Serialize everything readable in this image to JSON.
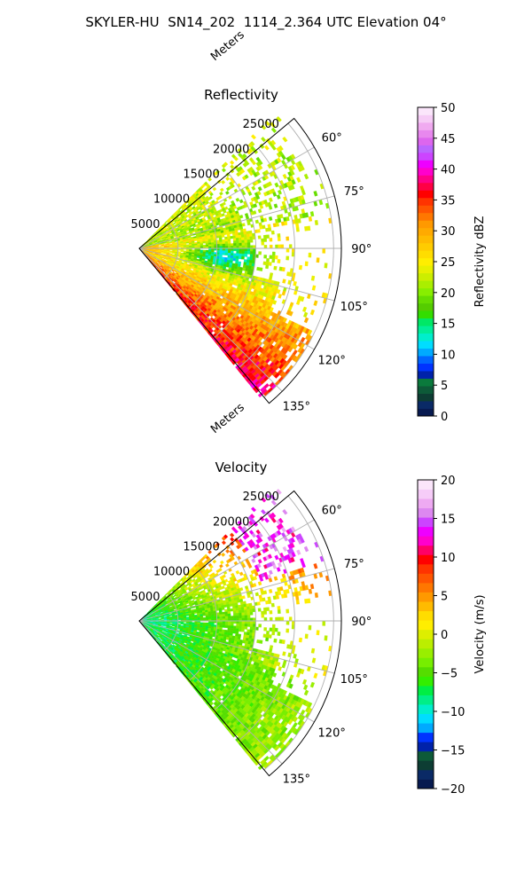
{
  "figure": {
    "suptitle": "SKYLER-HU  SN14_202  1114_2.364 UTC Elevation 04°"
  },
  "chart_data": [
    {
      "type": "heatmap",
      "subtype": "polar-sector",
      "title": "Reflectivity",
      "radial_axis_label": "Meters",
      "radial_ticks": [
        5000,
        10000,
        15000,
        20000,
        25000
      ],
      "radial_tick_labels": [
        "5000",
        "10000",
        "15000",
        "20000",
        "25000"
      ],
      "radial_range": [
        0,
        26000
      ],
      "angular_range_deg": [
        50,
        140
      ],
      "angular_ticks_deg": [
        60,
        75,
        90,
        105,
        120,
        135
      ],
      "angular_tick_labels": [
        "60°",
        "75°",
        "90°",
        "105°",
        "120°",
        "135°"
      ],
      "grid": true,
      "colorbar": {
        "label": "Reflectivity dBZ",
        "range": [
          0,
          50
        ],
        "ticks": [
          0,
          5,
          10,
          15,
          20,
          25,
          30,
          35,
          40,
          45,
          50
        ],
        "tick_labels": [
          "0",
          "5",
          "10",
          "15",
          "20",
          "25",
          "30",
          "35",
          "40",
          "45",
          "50"
        ],
        "colors": [
          "#071a50",
          "#0a2a66",
          "#0d3d33",
          "#0d5a38",
          "#0a7a3c",
          "#0022aa",
          "#0033ff",
          "#0066ff",
          "#00aaff",
          "#00ddff",
          "#00eecc",
          "#00ee99",
          "#00e866",
          "#33dd00",
          "#55cc00",
          "#66dd00",
          "#88ee00",
          "#aaee00",
          "#ccee00",
          "#e8f000",
          "#ffee00",
          "#ffdd00",
          "#ffcc00",
          "#ffbb00",
          "#ffaa00",
          "#ff9900",
          "#ff7700",
          "#ff5500",
          "#ff3300",
          "#ff0000",
          "#ff0044",
          "#ff0088",
          "#ff00cc",
          "#ee00ff",
          "#cc44ff",
          "#bb66ff",
          "#dd66ee",
          "#e888ee",
          "#f0aaf0",
          "#f6ccf6",
          "#fbe6fb"
        ]
      },
      "field_description": {
        "near_radar": 30,
        "core_near_90_to_100_deg": 14,
        "mid_range": 22,
        "far_south_sector": 32,
        "far_north_sector": 20
      }
    },
    {
      "type": "heatmap",
      "subtype": "polar-sector",
      "title": "Velocity",
      "radial_axis_label": "Meters",
      "radial_ticks": [
        5000,
        10000,
        15000,
        20000,
        25000
      ],
      "radial_tick_labels": [
        "5000",
        "10000",
        "15000",
        "20000",
        "25000"
      ],
      "radial_range": [
        0,
        26000
      ],
      "angular_range_deg": [
        50,
        140
      ],
      "angular_ticks_deg": [
        60,
        75,
        90,
        105,
        120,
        135
      ],
      "angular_tick_labels": [
        "60°",
        "75°",
        "90°",
        "105°",
        "120°",
        "135°"
      ],
      "grid": true,
      "colorbar": {
        "label": "Velocity (m/s)",
        "range": [
          -20,
          20
        ],
        "ticks": [
          -20,
          -15,
          -10,
          -5,
          0,
          5,
          10,
          15,
          20
        ],
        "tick_labels": [
          "−20",
          "−15",
          "−10",
          "−5",
          "0",
          "5",
          "10",
          "15",
          "20"
        ],
        "colors": [
          "#071a50",
          "#0a2a66",
          "#0d3d33",
          "#0d5a38",
          "#0022aa",
          "#0033ff",
          "#00aaff",
          "#00ddff",
          "#00eecc",
          "#00ee88",
          "#00ee44",
          "#33ee00",
          "#55dd00",
          "#77ee00",
          "#99ee00",
          "#bbee00",
          "#ddee00",
          "#ffee00",
          "#ffdd00",
          "#ffbb00",
          "#ff9900",
          "#ff7700",
          "#ff5500",
          "#ff3300",
          "#ff0000",
          "#ff0066",
          "#ff00cc",
          "#ee00ff",
          "#cc44ff",
          "#dd88f0",
          "#eeaaf2",
          "#f6ccf8",
          "#fbe6fb"
        ]
      },
      "field_description": {
        "near_radar": -8,
        "southern_sector": -4,
        "mid_range": 1,
        "northern_far_sector": 8,
        "far_north_tip": 14
      }
    }
  ]
}
